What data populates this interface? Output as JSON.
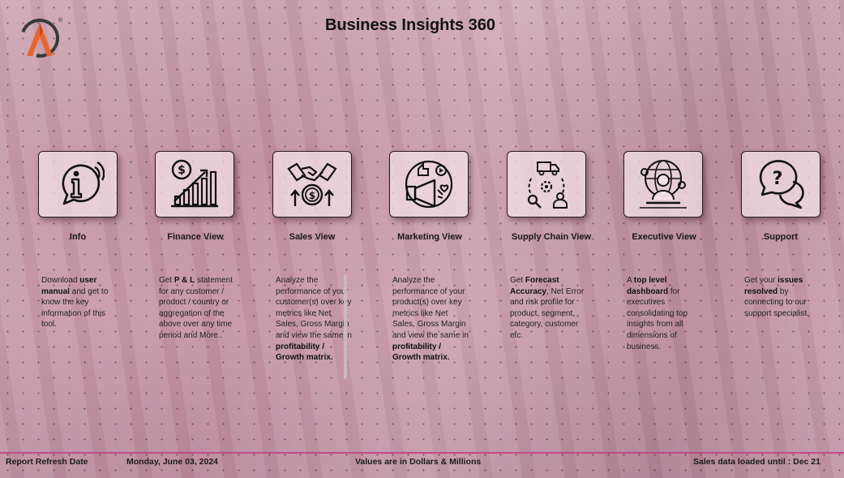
{
  "header": {
    "title": "Business Insights 360",
    "logo_letter": "A",
    "logo_mark": "®"
  },
  "cards": [
    {
      "label": "Info",
      "icon": "info-icon",
      "desc": [
        {
          "t": "Download "
        },
        {
          "t": "user manual",
          "b": true
        },
        {
          "t": " and get to know the key information of this tool."
        }
      ]
    },
    {
      "label": "Finance View",
      "icon": "finance-chart-icon",
      "desc": [
        {
          "t": "Get  "
        },
        {
          "t": "P & L",
          "b": true
        },
        {
          "t": " statement for any customer / product / country or aggregation of the above over any time period and More.."
        }
      ]
    },
    {
      "label": "Sales View",
      "icon": "handshake-icon",
      "desc": [
        {
          "t": "Analyze the performance of your customer(s) over key metrics like Net Sales, Gross Margin and view the same in "
        },
        {
          "t": "profitability / Growth matrix.",
          "b": true
        }
      ]
    },
    {
      "label": "Marketing View",
      "icon": "megaphone-icon",
      "desc": [
        {
          "t": "Analyze the performance of your product(s) over key metrics like Net Sales, Gross Margin and view the same in "
        },
        {
          "t": "profitability / Growth matrix.",
          "b": true
        }
      ]
    },
    {
      "label": "Supply Chain View",
      "icon": "supply-chain-icon",
      "desc": [
        {
          "t": "Get "
        },
        {
          "t": "Forecast Accuracy",
          "b": true
        },
        {
          "t": ", Net Error and risk profile for product, segment, category, customer etc."
        }
      ]
    },
    {
      "label": "Executive View",
      "icon": "executive-icon",
      "desc": [
        {
          "t": "A "
        },
        {
          "t": "top level dashboard",
          "b": true
        },
        {
          "t": " for executives consolidating top insights from all dimensions of business."
        }
      ]
    },
    {
      "label": "Support",
      "icon": "support-chat-icon",
      "desc": [
        {
          "t": "Get your "
        },
        {
          "t": "issues resolved",
          "b": true
        },
        {
          "t": " by connecting to our support specialist."
        }
      ]
    }
  ],
  "footer": {
    "refresh_label": "Report Refresh Date",
    "refresh_date": "Monday, June 03, 2024",
    "units_note": "Values are in Dollars & Millions",
    "sales_loaded": "Sales data loaded until : Dec 21"
  },
  "colors": {
    "accent": "#c04a86",
    "logo_orange": "#e8652c",
    "logo_dark": "#3a3a3a"
  }
}
